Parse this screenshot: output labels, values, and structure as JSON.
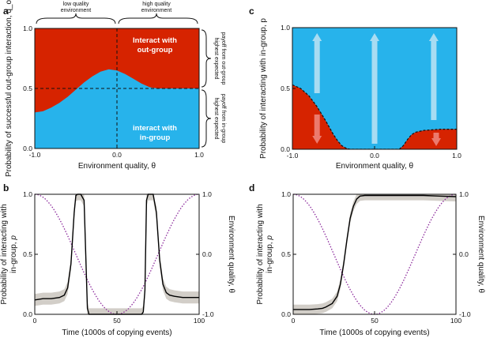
{
  "colors": {
    "red": "#d62300",
    "blue": "#27b3eb",
    "arrow": "#bfe3f3",
    "arrow_red": "#f08a80",
    "band": "#d2cec8",
    "line": "#000000",
    "dotted": "#8c2a9c"
  },
  "chart_data": [
    {
      "panel": "a",
      "type": "area",
      "title": "",
      "xlabel": "Environment quality, θ",
      "ylabel": "Probability of successful out-group interaction, q_o",
      "xlim": [
        -1,
        1
      ],
      "ylim": [
        0,
        1
      ],
      "x_ticks": [
        "-1.0",
        "0.0",
        "1.0"
      ],
      "y_ticks": [
        "0.0",
        "0.5",
        "1.0"
      ],
      "boundary": {
        "x": [
          -1.0,
          -0.9,
          -0.8,
          -0.7,
          -0.6,
          -0.5,
          -0.4,
          -0.3,
          -0.2,
          -0.1,
          0.0,
          0.1,
          0.2,
          0.3,
          0.4,
          0.5,
          0.6,
          0.7,
          0.8,
          0.9,
          1.0
        ],
        "y": [
          0.3,
          0.31,
          0.34,
          0.38,
          0.43,
          0.49,
          0.55,
          0.6,
          0.64,
          0.66,
          0.65,
          0.62,
          0.58,
          0.54,
          0.51,
          0.5,
          0.5,
          0.5,
          0.5,
          0.5,
          0.5
        ]
      },
      "threshold_line": 0.5,
      "region_labels": {
        "top_line1": "Interact with",
        "top_line2": "out-group",
        "bottom_line1": "interact with",
        "bottom_line2": "in-group"
      },
      "brace_labels": {
        "low_line1": "low quality",
        "low_line2": "environment",
        "high_line1": "high quality",
        "high_line2": "environment"
      },
      "side_labels": {
        "upper_line1": "highest expected",
        "upper_line2": "payoff from out-group",
        "lower_line1": "highest expected",
        "lower_line2": "payoff from in-group"
      }
    },
    {
      "panel": "c",
      "type": "area",
      "title": "",
      "xlabel": "Environment quality, θ",
      "ylabel": "Probability of interacting with in-group, p",
      "xlim": [
        -1,
        1
      ],
      "ylim": [
        0,
        1
      ],
      "x_ticks": [
        "-1.0",
        "0.0",
        "1.0"
      ],
      "y_ticks": [
        "0.0",
        "0.5",
        "1.0"
      ],
      "boundary": {
        "x": [
          -1.0,
          -0.9,
          -0.8,
          -0.7,
          -0.6,
          -0.5,
          -0.45,
          -0.4,
          -0.35,
          -0.3,
          0.3,
          0.35,
          0.4,
          0.45,
          0.5,
          0.6,
          0.7,
          0.8,
          0.9,
          1.0
        ],
        "y": [
          0.53,
          0.5,
          0.44,
          0.35,
          0.24,
          0.12,
          0.07,
          0.03,
          0.01,
          0.0,
          0.0,
          0.03,
          0.08,
          0.12,
          0.14,
          0.155,
          0.16,
          0.165,
          0.165,
          0.165
        ]
      },
      "arrows_up_x": [
        -0.8,
        0.0,
        0.7
      ],
      "arrows_down_x": [
        -0.8,
        0.75
      ]
    },
    {
      "panel": "b",
      "type": "line",
      "xlabel": "Time (1000s of copying events)",
      "ylabel": "Probability of interacting with in-group, p",
      "y2label": "Environment quality, θ",
      "xlim": [
        0,
        100
      ],
      "ylim": [
        0,
        1
      ],
      "x_ticks": [
        "0",
        "50",
        "100"
      ],
      "y_ticks": [
        "0.0",
        "0.5",
        "1.0"
      ],
      "y2_ticks": [
        "-1.0",
        "0.0",
        "1.0"
      ],
      "series": [
        {
          "name": "p",
          "x": [
            0,
            5,
            10,
            15,
            18,
            20,
            22,
            24,
            25,
            26,
            27,
            28,
            30,
            31,
            32,
            33,
            35,
            40,
            50,
            60,
            65,
            66,
            67,
            68,
            69,
            70,
            72,
            74,
            75,
            76,
            78,
            80,
            82,
            85,
            90,
            95,
            100
          ],
          "y": [
            0.12,
            0.13,
            0.13,
            0.14,
            0.16,
            0.22,
            0.42,
            0.85,
            0.99,
            1.0,
            1.0,
            1.0,
            0.95,
            0.5,
            0.05,
            0.0,
            0.0,
            0.0,
            0.0,
            0.0,
            0.0,
            0.02,
            0.2,
            0.95,
            1.0,
            1.0,
            1.0,
            0.85,
            0.65,
            0.45,
            0.25,
            0.18,
            0.16,
            0.15,
            0.14,
            0.14,
            0.14
          ]
        }
      ],
      "band_half_width": 0.05,
      "theta": "cos(2πt/100)"
    },
    {
      "panel": "d",
      "type": "line",
      "xlabel": "Time (1000s of copying events)",
      "ylabel": "Probability of interacting with in-group, p",
      "y2label": "Environment quality, θ",
      "xlim": [
        0,
        100
      ],
      "ylim": [
        0,
        1
      ],
      "x_ticks": [
        "0",
        "50",
        "100"
      ],
      "y_ticks": [
        "0.0",
        "0.5",
        "1.0"
      ],
      "y2_ticks": [
        "-1.0",
        "0.0",
        "1.0"
      ],
      "series": [
        {
          "name": "p",
          "x": [
            0,
            5,
            10,
            15,
            18,
            20,
            24,
            27,
            29,
            31,
            33,
            35,
            37,
            39,
            41,
            44,
            50,
            60,
            70,
            80,
            90,
            100
          ],
          "y": [
            0.04,
            0.04,
            0.04,
            0.045,
            0.05,
            0.06,
            0.09,
            0.15,
            0.25,
            0.42,
            0.62,
            0.8,
            0.9,
            0.96,
            0.985,
            0.99,
            0.99,
            0.99,
            0.99,
            0.99,
            0.985,
            0.98
          ]
        }
      ],
      "band_half_width": 0.04,
      "theta": "cos(2πt/100)"
    }
  ]
}
